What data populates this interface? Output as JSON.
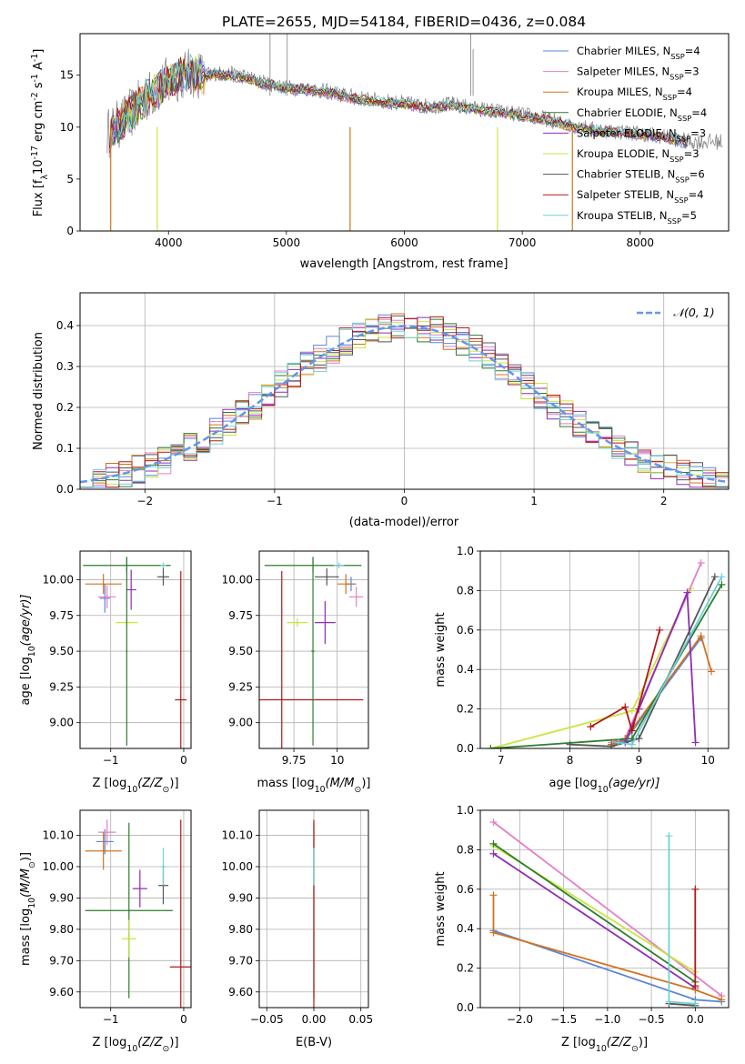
{
  "figure": {
    "title": "PLATE=2655, MJD=54184, FIBERID=0436, z=0.084"
  },
  "colors": {
    "chabrier_miles": "#5b86d6",
    "salpeter_miles": "#e67fc4",
    "kroupa_miles": "#d2731e",
    "chabrier_elodie": "#2e7d2e",
    "salpeter_elodie": "#8e2db5",
    "kroupa_elodie": "#c8e640",
    "chabrier_stelib": "#555555",
    "salpeter_stelib": "#b01818",
    "kroupa_stelib": "#6fd0d8",
    "normal_curve": "#6495ed"
  },
  "legend_spectrum": [
    {
      "key": "chabrier_miles",
      "label": "Chabrier MILES, N",
      "sub": "SSP",
      "suffix": "=4"
    },
    {
      "key": "salpeter_miles",
      "label": "Salpeter MILES, N",
      "sub": "SSP",
      "suffix": "=3"
    },
    {
      "key": "kroupa_miles",
      "label": "Kroupa MILES, N",
      "sub": "SSP",
      "suffix": "=4"
    },
    {
      "key": "chabrier_elodie",
      "label": "Chabrier ELODIE, N",
      "sub": "SSP",
      "suffix": "=4"
    },
    {
      "key": "salpeter_elodie",
      "label": "Salpeter ELODIE, N",
      "sub": "SSP",
      "suffix": "=3"
    },
    {
      "key": "kroupa_elodie",
      "label": "Kroupa ELODIE, N",
      "sub": "SSP",
      "suffix": "=3"
    },
    {
      "key": "chabrier_stelib",
      "label": "Chabrier STELIB, N",
      "sub": "SSP",
      "suffix": "=6"
    },
    {
      "key": "salpeter_stelib",
      "label": "Salpeter STELIB, N",
      "sub": "SSP",
      "suffix": "=4"
    },
    {
      "key": "kroupa_stelib",
      "label": "Kroupa STELIB, N",
      "sub": "SSP",
      "suffix": "=5"
    }
  ],
  "chart_data": [
    {
      "id": "spectrum",
      "type": "line",
      "xlabel": "wavelength [Angstrom, rest frame]",
      "ylabel": "Flux [f",
      "ylabel_sub": "λ",
      "ylabel_rest": "10",
      "ylabel_exp": "-17",
      "ylabel_tail": " erg cm",
      "ylabel_exp2": "-2",
      "ylabel_tail2": " s",
      "ylabel_exp3": "-1",
      "ylabel_tail3": " A",
      "ylabel_exp4": "-1",
      "ylabel_end": "]",
      "xlim": [
        3250,
        8750
      ],
      "ylim": [
        0,
        19
      ],
      "xticks": [
        4000,
        5000,
        6000,
        7000,
        8000
      ],
      "yticks": [
        0,
        5,
        10,
        15
      ],
      "continuum": {
        "x": [
          3500,
          3600,
          3700,
          3800,
          3900,
          4000,
          4100,
          4200,
          4300,
          4400,
          4600,
          4800,
          5000,
          5200,
          5400,
          5600,
          5800,
          6000,
          6200,
          6400,
          6600,
          6800,
          7000,
          7200,
          7400,
          7600,
          7800,
          8000,
          8200,
          8400
        ],
        "y": [
          9.5,
          10.5,
          11.5,
          12.8,
          13.6,
          14.5,
          15.0,
          15.2,
          15.0,
          15.2,
          15.0,
          14.3,
          13.8,
          13.7,
          13.3,
          12.8,
          12.5,
          12.3,
          12.0,
          12.2,
          11.8,
          11.5,
          11.2,
          10.8,
          10.2,
          9.8,
          9.6,
          9.4,
          9.1,
          8.6
        ]
      }
    },
    {
      "id": "residual_hist",
      "type": "area",
      "xlabel": "(data-model)/error",
      "ylabel": "Normed distribution",
      "xlim": [
        -2.5,
        2.5
      ],
      "ylim": [
        0,
        0.48
      ],
      "xticks": [
        -2,
        -1,
        0,
        1,
        2
      ],
      "yticks": [
        0.0,
        0.1,
        0.2,
        0.3,
        0.4
      ],
      "legend": "𝒩(0, 1)",
      "bin_width": 0.1
    },
    {
      "id": "age_vs_Z",
      "type": "scatter",
      "xlabel": "Z [log",
      "xlabel_sub": "10",
      "xlabel_rest": "(Z/Z",
      "xlabel_sub2": "⊙",
      "xlabel_end": ")]",
      "ylabel": "age  [log",
      "ylabel_sub": "10",
      "ylabel_rest": "(age/yr)]",
      "xlim": [
        -1.42,
        0.1
      ],
      "ylim": [
        8.82,
        10.2
      ],
      "xticks": [
        -1,
        0
      ],
      "yticks": [
        9.0,
        9.25,
        9.5,
        9.75,
        10.0
      ],
      "points": [
        {
          "key": "chabrier_miles",
          "x": -1.08,
          "y": 9.87,
          "dx": 0.07,
          "dy": 0.1
        },
        {
          "key": "salpeter_miles",
          "x": -1.05,
          "y": 9.88,
          "dx": 0.12,
          "dy": 0.08
        },
        {
          "key": "kroupa_miles",
          "x": -1.1,
          "y": 9.97,
          "dx": 0.25,
          "dy": 0.07
        },
        {
          "key": "chabrier_elodie",
          "x": -0.78,
          "y": 10.1,
          "dx": 0.6,
          "dy": 0.05
        },
        {
          "key": "salpeter_elodie",
          "x": -0.72,
          "y": 9.93,
          "dx": 0.07,
          "dy": 0.14
        },
        {
          "key": "kroupa_elodie",
          "x": -0.78,
          "y": 9.7,
          "dx": 0.15,
          "dy": 0.03
        },
        {
          "key": "chabrier_stelib",
          "x": -0.28,
          "y": 10.02,
          "dx": 0.08,
          "dy": 0.06
        },
        {
          "key": "salpeter_stelib",
          "x": -0.04,
          "y": 9.16,
          "dx": 0.08,
          "dy": 0.9
        },
        {
          "key": "kroupa_stelib",
          "x": -0.28,
          "y": 10.1,
          "dx": 0.04,
          "dy": 0.02
        },
        {
          "key": "chabrier_elodie",
          "x": -0.78,
          "y": 9.5,
          "dx": 0.01,
          "dy": 0.66
        }
      ]
    },
    {
      "id": "age_vs_mass",
      "type": "scatter",
      "xlabel": "mass [log",
      "xlabel_sub": "10",
      "xlabel_rest": "(M/M",
      "xlabel_sub2": "⊙",
      "xlabel_end": ")]",
      "xlim": [
        9.55,
        10.18
      ],
      "ylim": [
        8.82,
        10.2
      ],
      "xticks": [
        9.75,
        10.0
      ],
      "yticks": [
        9.0,
        9.25,
        9.5,
        9.75,
        10.0
      ],
      "points": [
        {
          "key": "chabrier_miles",
          "x": 10.08,
          "y": 9.97,
          "dx": 0.03,
          "dy": 0.05
        },
        {
          "key": "salpeter_miles",
          "x": 10.11,
          "y": 9.88,
          "dx": 0.04,
          "dy": 0.07
        },
        {
          "key": "kroupa_miles",
          "x": 10.05,
          "y": 9.97,
          "dx": 0.05,
          "dy": 0.07
        },
        {
          "key": "chabrier_elodie",
          "x": 9.86,
          "y": 10.1,
          "dx": 0.28,
          "dy": 0.05
        },
        {
          "key": "salpeter_elodie",
          "x": 9.93,
          "y": 9.7,
          "dx": 0.06,
          "dy": 0.15
        },
        {
          "key": "kroupa_elodie",
          "x": 9.77,
          "y": 9.7,
          "dx": 0.06,
          "dy": 0.03
        },
        {
          "key": "chabrier_stelib",
          "x": 9.94,
          "y": 10.02,
          "dx": 0.07,
          "dy": 0.06
        },
        {
          "key": "salpeter_stelib",
          "x": 9.68,
          "y": 9.16,
          "dx": 0.47,
          "dy": 0.9
        },
        {
          "key": "kroupa_stelib",
          "x": 10.01,
          "y": 10.1,
          "dx": 0.03,
          "dy": 0.02
        },
        {
          "key": "chabrier_elodie",
          "x": 9.86,
          "y": 9.5,
          "dx": 0.01,
          "dy": 0.66
        }
      ]
    },
    {
      "id": "mass_weight_vs_age",
      "type": "line",
      "xlabel": "age  [log",
      "xlabel_sub": "10",
      "xlabel_rest": "(age/yr)]",
      "ylabel": "mass weight",
      "xlim": [
        6.7,
        10.3
      ],
      "ylim": [
        0,
        1.0
      ],
      "xticks": [
        7,
        8,
        9,
        10
      ],
      "yticks": [
        0.0,
        0.2,
        0.4,
        0.6,
        0.8,
        1.0
      ],
      "series": [
        {
          "key": "kroupa_elodie",
          "x": [
            6.85,
            8.9,
            9.75
          ],
          "y": [
            0.0,
            0.19,
            0.81
          ]
        },
        {
          "key": "salpeter_miles",
          "x": [
            8.6,
            8.8,
            9.9
          ],
          "y": [
            0.03,
            0.05,
            0.94
          ]
        },
        {
          "key": "chabrier_miles",
          "x": [
            8.6,
            8.8,
            9.9
          ],
          "y": [
            0.02,
            0.04,
            0.56
          ]
        },
        {
          "key": "kroupa_miles",
          "x": [
            8.6,
            8.8,
            9.9,
            10.05
          ],
          "y": [
            0.02,
            0.05,
            0.57,
            0.39
          ]
        },
        {
          "key": "chabrier_elodie",
          "x": [
            6.85,
            8.9,
            10.2
          ],
          "y": [
            0.0,
            0.05,
            0.83
          ]
        },
        {
          "key": "salpeter_elodie",
          "x": [
            8.8,
            9.0,
            9.7,
            9.82
          ],
          "y": [
            0.03,
            0.2,
            0.79,
            0.03
          ]
        },
        {
          "key": "chabrier_stelib",
          "x": [
            8.0,
            8.6,
            9.0,
            10.1
          ],
          "y": [
            0.02,
            0.01,
            0.05,
            0.87
          ]
        },
        {
          "key": "salpeter_stelib",
          "x": [
            8.3,
            8.8,
            8.9,
            9.3
          ],
          "y": [
            0.11,
            0.21,
            0.09,
            0.6
          ]
        },
        {
          "key": "kroupa_stelib",
          "x": [
            8.7,
            8.9,
            10.2
          ],
          "y": [
            0.03,
            0.02,
            0.87
          ]
        }
      ]
    },
    {
      "id": "mass_vs_Z",
      "type": "scatter",
      "xlabel": "Z [log",
      "xlabel_sub": "10",
      "xlabel_rest": "(Z/Z",
      "xlabel_sub2": "⊙",
      "xlabel_end": ")]",
      "ylabel": "mass [log",
      "ylabel_sub": "10",
      "ylabel_rest": "(M/M",
      "ylabel_sub2": "⊙",
      "ylabel_end": ")]",
      "xlim": [
        -1.42,
        0.1
      ],
      "ylim": [
        9.55,
        10.18
      ],
      "xticks": [
        -1,
        0
      ],
      "yticks": [
        9.6,
        9.7,
        9.8,
        9.9,
        10.0,
        10.1
      ],
      "points": [
        {
          "key": "chabrier_miles",
          "x": -1.08,
          "y": 10.08,
          "dx": 0.12,
          "dy": 0.04
        },
        {
          "key": "salpeter_miles",
          "x": -1.05,
          "y": 10.11,
          "dx": 0.12,
          "dy": 0.04
        },
        {
          "key": "kroupa_miles",
          "x": -1.1,
          "y": 10.05,
          "dx": 0.25,
          "dy": 0.06
        },
        {
          "key": "chabrier_elodie",
          "x": -0.75,
          "y": 9.86,
          "dx": 0.6,
          "dy": 0.28
        },
        {
          "key": "salpeter_elodie",
          "x": -0.6,
          "y": 9.93,
          "dx": 0.1,
          "dy": 0.06
        },
        {
          "key": "kroupa_elodie",
          "x": -0.75,
          "y": 9.77,
          "dx": 0.1,
          "dy": 0.06
        },
        {
          "key": "chabrier_stelib",
          "x": -0.28,
          "y": 9.94,
          "dx": 0.07,
          "dy": 0.06
        },
        {
          "key": "salpeter_stelib",
          "x": -0.04,
          "y": 9.68,
          "dx": 0.15,
          "dy": 0.47
        },
        {
          "key": "kroupa_stelib",
          "x": -0.28,
          "y": 10.0,
          "dx": 0.03,
          "dy": 0.06
        }
      ]
    },
    {
      "id": "mass_vs_ebv",
      "type": "scatter",
      "xlabel": "E(B-V)",
      "xlim": [
        -0.058,
        0.058
      ],
      "ylim": [
        9.55,
        10.18
      ],
      "xticks": [
        -0.05,
        0.0,
        0.05
      ],
      "xticklabels": [
        "−0.05",
        "0.00",
        "0.05"
      ],
      "yticks": [
        9.6,
        9.7,
        9.8,
        9.9,
        10.0,
        10.1
      ],
      "points": [
        {
          "key": "chabrier_elodie",
          "x": 0.0,
          "y": 9.86,
          "dx": 0.0,
          "dy": 0.28
        },
        {
          "key": "salpeter_stelib",
          "x": 0.0,
          "y": 9.68,
          "dx": 0.0,
          "dy": 0.47
        },
        {
          "key": "kroupa_stelib",
          "x": 0.0,
          "y": 10.0,
          "dx": 0.0,
          "dy": 0.06
        }
      ]
    },
    {
      "id": "mass_weight_vs_Z",
      "type": "line",
      "xlabel": "Z [log",
      "xlabel_sub": "10",
      "xlabel_rest": "(Z/Z",
      "xlabel_sub2": "⊙",
      "xlabel_end": ")]",
      "ylabel": "mass weight",
      "xlim": [
        -2.45,
        0.38
      ],
      "ylim": [
        0,
        1.0
      ],
      "xticks": [
        -2.0,
        -1.5,
        -1.0,
        -0.5,
        0.0
      ],
      "xticklabels": [
        "−2.0",
        "−1.5",
        "−1.0",
        "−0.5",
        "0.0"
      ],
      "yticks": [
        0.0,
        0.2,
        0.4,
        0.6,
        0.8,
        1.0
      ],
      "series": [
        {
          "key": "salpeter_miles",
          "x": [
            -2.3,
            0.3
          ],
          "y": [
            0.94,
            0.06
          ]
        },
        {
          "key": "kroupa_elodie",
          "x": [
            -2.3,
            0.0
          ],
          "y": [
            0.82,
            0.18
          ]
        },
        {
          "key": "chabrier_elodie",
          "x": [
            -2.3,
            0.0
          ],
          "y": [
            0.83,
            0.13
          ]
        },
        {
          "key": "salpeter_elodie",
          "x": [
            -2.3,
            0.0
          ],
          "y": [
            0.78,
            0.1
          ]
        },
        {
          "key": "chabrier_miles",
          "x": [
            -2.3,
            0.0,
            0.3
          ],
          "y": [
            0.39,
            0.04,
            0.03
          ]
        },
        {
          "key": "kroupa_miles",
          "x": [
            -2.3,
            -2.3,
            0.0,
            0.3
          ],
          "y": [
            0.57,
            0.38,
            0.09,
            0.04
          ]
        },
        {
          "key": "chabrier_stelib",
          "x": [
            -0.3,
            0.0
          ],
          "y": [
            0.02,
            0.01
          ]
        },
        {
          "key": "salpeter_stelib",
          "x": [
            0.0,
            0.0
          ],
          "y": [
            0.6,
            0.11
          ]
        },
        {
          "key": "kroupa_stelib",
          "x": [
            -0.3,
            -0.3,
            0.0
          ],
          "y": [
            0.87,
            0.03,
            0.02
          ]
        }
      ]
    }
  ]
}
